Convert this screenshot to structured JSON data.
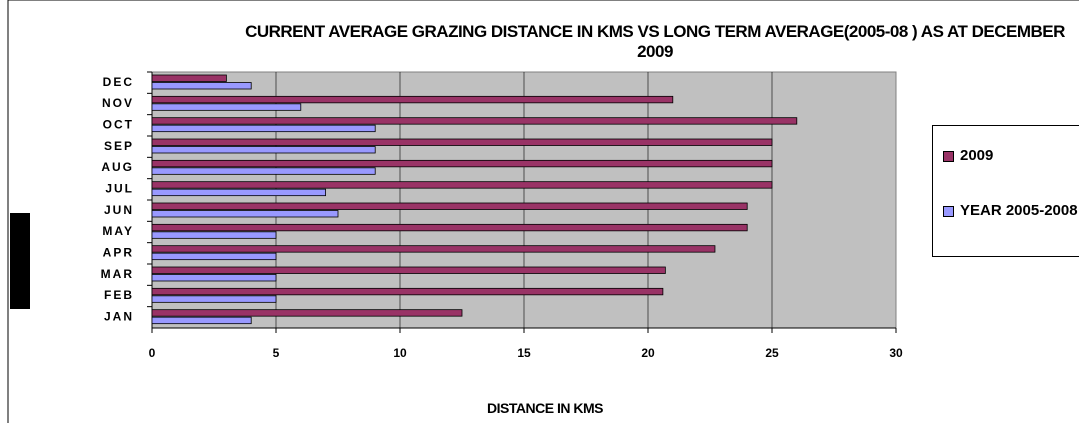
{
  "chart_data": {
    "type": "hbar",
    "title": "CURRENT AVERAGE GRAZING DISTANCE IN KMS VS LONG TERM AVERAGE(2005-08 ) AS AT DECEMBER  2009",
    "x_label": "DISTANCE IN KMS",
    "categories": [
      "JAN",
      "FEB",
      "MAR",
      "APR",
      "MAY",
      "JUN",
      "JUL",
      "AUG",
      "SEP",
      "OCT",
      "NOV",
      "DEC"
    ],
    "series": [
      {
        "name": "2009",
        "color": "#993366",
        "values": [
          12.5,
          20.6,
          20.7,
          22.7,
          24,
          24,
          25,
          25,
          25,
          26,
          21,
          3
        ]
      },
      {
        "name": "YEAR 2005-2008",
        "color": "#9999ff",
        "values": [
          4,
          5,
          5,
          5,
          5,
          7.5,
          7,
          9,
          9,
          9,
          6,
          4
        ]
      }
    ],
    "xlim": [
      0,
      30
    ],
    "xticks": [
      0,
      5,
      10,
      15,
      20,
      25,
      30
    ],
    "grid": true,
    "legend": "right"
  }
}
